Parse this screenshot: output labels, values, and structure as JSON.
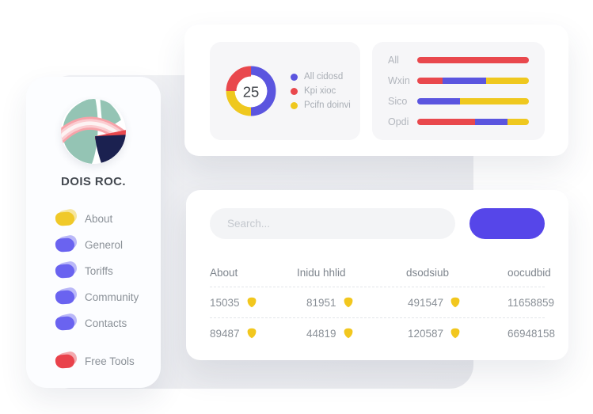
{
  "colors": {
    "accent_blue": "#5646E9",
    "chart_blue": "#5B55DF",
    "chart_red": "#E9484D",
    "chart_yellow": "#EFC81F",
    "badge_yellow": "#F2C71E",
    "logo_teal": "#94C4B4",
    "logo_navy": "#1B2150",
    "logo_pink": "#F7A3A9",
    "backdrop_gray": "#ECEDF1"
  },
  "sidebar": {
    "title": "DOIS ROC.",
    "items": [
      {
        "label": "About",
        "color": "#F0C929",
        "gap_before": false
      },
      {
        "label": "Generol",
        "color": "#6A63F0",
        "gap_before": false
      },
      {
        "label": "Toriffs",
        "color": "#6A63F0",
        "gap_before": false
      },
      {
        "label": "Community",
        "color": "#6A63F0",
        "gap_before": false
      },
      {
        "label": "Contacts",
        "color": "#6A63F0",
        "gap_before": false
      },
      {
        "label": "Free Tools",
        "color": "#E9424B",
        "gap_before": true
      }
    ]
  },
  "top_card": {
    "donut": {
      "value": "25",
      "segments": [
        {
          "label": "All cidosd",
          "color": "#5B55DF",
          "pct": 50,
          "start": 0,
          "thick": false
        },
        {
          "label": "Kpi xioc",
          "color": "#E9484D",
          "pct": 25,
          "start": 75,
          "thick": true
        },
        {
          "label": "Pcifn doinvi",
          "color": "#EFC81F",
          "pct": 25,
          "start": 50,
          "thick": false
        }
      ]
    },
    "bars": [
      {
        "label": "All",
        "segments": [
          {
            "color": "#E9484D",
            "pct": 100
          }
        ]
      },
      {
        "label": "Wxin",
        "segments": [
          {
            "color": "#E9484D",
            "pct": 23
          },
          {
            "color": "#5B55DF",
            "pct": 39
          },
          {
            "color": "#EFC81F",
            "pct": 38
          }
        ]
      },
      {
        "label": "Sico",
        "segments": [
          {
            "color": "#5B55DF",
            "pct": 38
          },
          {
            "color": "#EFC81F",
            "pct": 62
          }
        ]
      },
      {
        "label": "Opdi",
        "segments": [
          {
            "color": "#E9484D",
            "pct": 52
          },
          {
            "color": "#5B55DF",
            "pct": 29
          },
          {
            "color": "#EFC81F",
            "pct": 19
          }
        ]
      }
    ]
  },
  "bottom_card": {
    "search_placeholder": "Search...",
    "button_label": "",
    "table": {
      "headers": [
        "About",
        "Inidu hhlid",
        "dsodsiub",
        "oocudbid"
      ],
      "rows": [
        [
          {
            "value": "15035",
            "badge": true
          },
          {
            "value": "81951",
            "badge": true
          },
          {
            "value": "491547",
            "badge": true
          },
          {
            "value": "11658859",
            "badge": false
          }
        ],
        [
          {
            "value": "89487",
            "badge": true
          },
          {
            "value": "44819",
            "badge": true
          },
          {
            "value": "120587",
            "badge": true
          },
          {
            "value": "66948158",
            "badge": false
          }
        ]
      ]
    }
  }
}
